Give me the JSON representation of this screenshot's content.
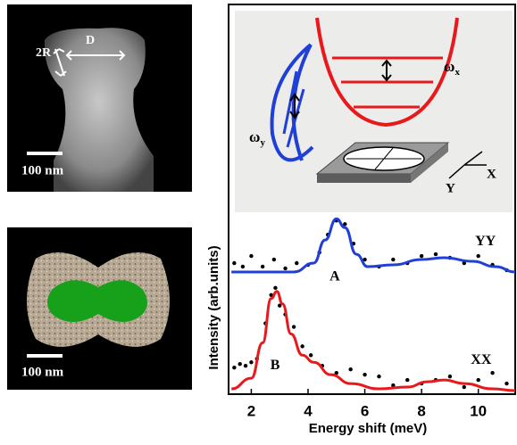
{
  "panels": {
    "top_image": {
      "labels": [
        "2R",
        "D"
      ],
      "scale_bar": "100 nm"
    },
    "bottom_image": {
      "scale_bar": "100 nm"
    }
  },
  "inset": {
    "omega_x": {
      "symbol": "ω",
      "subscript": "x"
    },
    "omega_y": {
      "symbol": "ω",
      "subscript": "y"
    },
    "axes": [
      "X",
      "Y"
    ]
  },
  "chart_data": {
    "type": "line",
    "xlabel": "Energy shift (meV)",
    "ylabel": "Intensity (arb.units)",
    "xlim": [
      1.2,
      11.3
    ],
    "xticks": [
      2,
      4,
      6,
      8,
      10
    ],
    "ylim": [
      0,
      2.2
    ],
    "annotations": [
      "A",
      "B"
    ],
    "marker_color": "#000000",
    "series": [
      {
        "name": "YY",
        "color": "#1f3fd6",
        "x": [
          1.3,
          3.5,
          4.2,
          4.6,
          5.0,
          5.3,
          5.7,
          6.1,
          7.0,
          8.0,
          8.8,
          9.8,
          10.6,
          11.3
        ],
        "values": [
          0.69,
          0.69,
          0.74,
          0.87,
          0.99,
          0.94,
          0.79,
          0.72,
          0.73,
          0.76,
          0.77,
          0.75,
          0.72,
          0.69
        ],
        "markers": {
          "x": [
            1.4,
            1.7,
            2.0,
            2.4,
            2.8,
            3.2,
            3.6,
            4.0,
            4.4,
            4.7,
            5.0,
            5.3,
            5.6,
            6.0,
            6.5,
            7.0,
            7.5,
            8.0,
            8.5,
            9.0,
            9.5,
            10.0,
            10.5,
            11.0
          ],
          "values": [
            0.74,
            0.72,
            0.78,
            0.72,
            0.76,
            0.71,
            0.74,
            0.73,
            0.8,
            0.9,
            0.98,
            0.96,
            0.85,
            0.76,
            0.72,
            0.76,
            0.74,
            0.78,
            0.79,
            0.77,
            0.74,
            0.78,
            0.73,
            0.7
          ]
        }
      },
      {
        "name": "XX",
        "color": "#e8191c",
        "x": [
          1.3,
          2.0,
          2.4,
          2.7,
          2.9,
          3.1,
          3.4,
          3.8,
          4.2,
          4.8,
          5.5,
          6.5,
          7.5,
          8.2,
          8.8,
          9.5,
          10.5,
          11.3
        ],
        "values": [
          0.03,
          0.09,
          0.29,
          0.54,
          0.58,
          0.51,
          0.34,
          0.22,
          0.18,
          0.11,
          0.06,
          0.03,
          0.04,
          0.07,
          0.08,
          0.06,
          0.03,
          0.02
        ],
        "markers": {
          "x": [
            1.4,
            1.6,
            1.8,
            2.0,
            2.2,
            2.5,
            2.7,
            2.85,
            3.0,
            3.2,
            3.5,
            3.8,
            4.1,
            4.5,
            5.0,
            5.5,
            6.0,
            6.5,
            7.0,
            7.5,
            8.0,
            8.5,
            9.0,
            9.5,
            10.0,
            10.5,
            11.0
          ],
          "values": [
            0.15,
            0.17,
            0.16,
            0.18,
            0.2,
            0.4,
            0.56,
            0.6,
            0.5,
            0.45,
            0.38,
            0.27,
            0.22,
            0.16,
            0.12,
            0.14,
            0.11,
            0.1,
            0.05,
            0.08,
            0.06,
            0.08,
            0.1,
            0.04,
            0.08,
            0.12,
            0.06
          ]
        }
      }
    ]
  }
}
